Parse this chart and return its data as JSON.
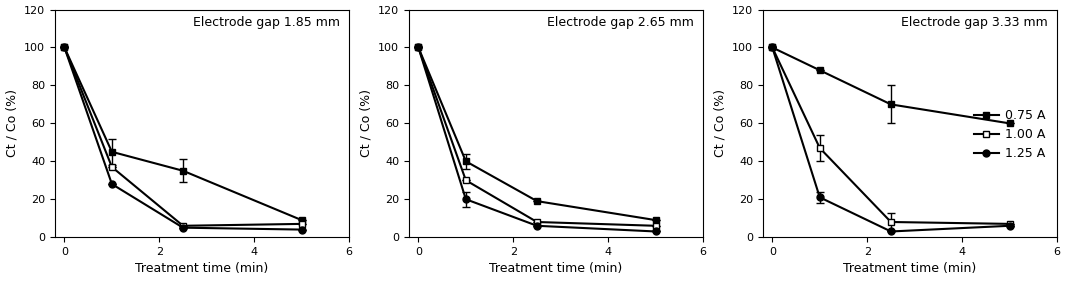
{
  "panels": [
    {
      "title": "Electrode gap 1.85 mm",
      "series": [
        {
          "label": "0.75 A",
          "x": [
            0,
            1,
            2.5,
            5
          ],
          "y": [
            100,
            45,
            35,
            9
          ],
          "yerr": [
            0,
            7,
            6,
            0
          ],
          "marker": "s",
          "fillstyle": "full"
        },
        {
          "label": "1.00 A",
          "x": [
            0,
            1,
            2.5,
            5
          ],
          "y": [
            100,
            37,
            6,
            7
          ],
          "yerr": [
            0,
            0,
            0,
            0
          ],
          "marker": "s",
          "fillstyle": "none"
        },
        {
          "label": "1.25 A",
          "x": [
            0,
            1,
            2.5,
            5
          ],
          "y": [
            100,
            28,
            5,
            4
          ],
          "yerr": [
            0,
            0,
            0,
            0
          ],
          "marker": "o",
          "fillstyle": "full"
        }
      ]
    },
    {
      "title": "Electrode gap 2.65 mm",
      "series": [
        {
          "label": "0.75 A",
          "x": [
            0,
            1,
            2.5,
            5
          ],
          "y": [
            100,
            40,
            19,
            9
          ],
          "yerr": [
            0,
            4,
            0,
            0
          ],
          "marker": "s",
          "fillstyle": "full"
        },
        {
          "label": "1.00 A",
          "x": [
            0,
            1,
            2.5,
            5
          ],
          "y": [
            100,
            30,
            8,
            6
          ],
          "yerr": [
            0,
            0,
            0,
            0
          ],
          "marker": "s",
          "fillstyle": "none"
        },
        {
          "label": "1.25 A",
          "x": [
            0,
            1,
            2.5,
            5
          ],
          "y": [
            100,
            20,
            6,
            3
          ],
          "yerr": [
            0,
            4,
            0,
            0
          ],
          "marker": "o",
          "fillstyle": "full"
        }
      ]
    },
    {
      "title": "Electrode gap 3.33 mm",
      "series": [
        {
          "label": "0.75 A",
          "x": [
            0,
            1,
            2.5,
            5
          ],
          "y": [
            100,
            88,
            70,
            60
          ],
          "yerr": [
            0,
            0,
            10,
            0
          ],
          "marker": "s",
          "fillstyle": "full"
        },
        {
          "label": "1.00 A",
          "x": [
            0,
            1,
            2.5,
            5
          ],
          "y": [
            100,
            47,
            8,
            7
          ],
          "yerr": [
            0,
            7,
            5,
            0
          ],
          "marker": "s",
          "fillstyle": "none"
        },
        {
          "label": "1.25 A",
          "x": [
            0,
            1,
            2.5,
            5
          ],
          "y": [
            100,
            21,
            3,
            6
          ],
          "yerr": [
            0,
            3,
            0,
            0
          ],
          "marker": "o",
          "fillstyle": "full"
        }
      ]
    }
  ],
  "xlabel": "Treatment time (min)",
  "ylabel": "Ct / Co (%)",
  "xlim": [
    -0.2,
    6
  ],
  "ylim": [
    0,
    120
  ],
  "yticks": [
    0,
    20,
    40,
    60,
    80,
    100,
    120
  ],
  "xticks": [
    0,
    2,
    4,
    6
  ],
  "show_legend_panel": 2,
  "background_color": "#ffffff",
  "title_fontsize": 9,
  "axis_fontsize": 9,
  "tick_fontsize": 8,
  "linewidth": 1.5,
  "markersize": 5,
  "capsize": 3
}
